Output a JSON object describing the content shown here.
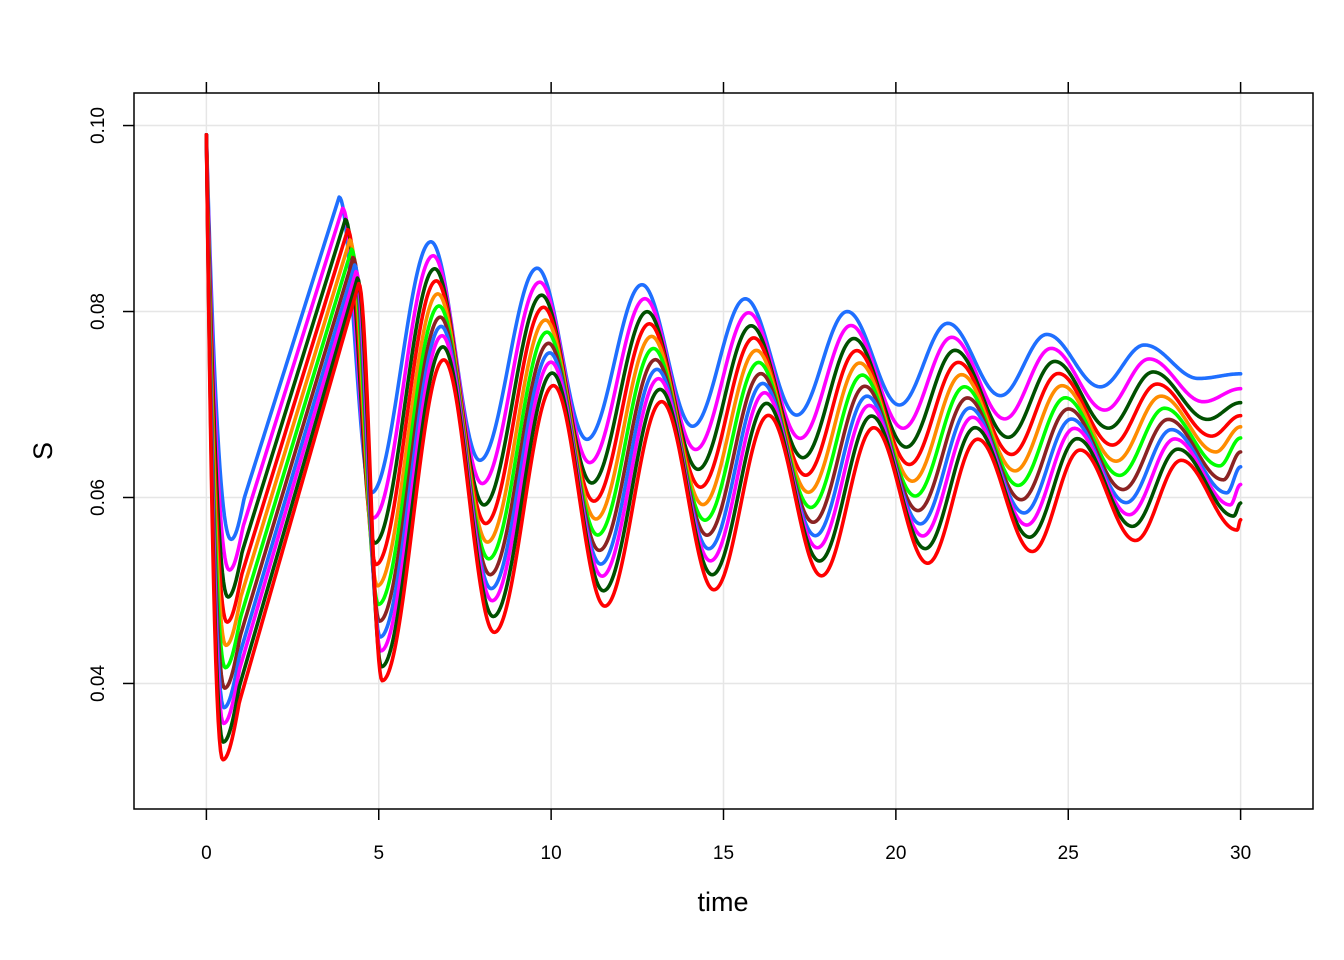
{
  "chart_data": {
    "type": "line",
    "title": "",
    "xlabel": "time",
    "ylabel": "S",
    "xlim": [
      -2.1,
      32.1
    ],
    "ylim": [
      0.0265,
      0.1035
    ],
    "x_ticks": [
      0,
      5,
      10,
      15,
      20,
      25,
      30
    ],
    "y_ticks": [
      0.04,
      0.06,
      0.08,
      0.1
    ],
    "x_tick_labels": [
      "0",
      "5",
      "10",
      "15",
      "20",
      "25",
      "30"
    ],
    "y_tick_labels": [
      "0.04",
      "0.06",
      "0.08",
      "0.10"
    ],
    "grid": true,
    "legend": "none",
    "series": [
      {
        "color": "#1f6fff",
        "s0": 0.099,
        "min1": 0.0555,
        "t_min1": 0.72,
        "peak1": 0.0923,
        "t_peak1": 3.85,
        "min2": 0.0605,
        "t_min2": 4.78,
        "period": 3.15,
        "period_end": 2.85,
        "peak2": 0.0875,
        "peak_end": 0.0764,
        "min3": 0.064,
        "min_end": 0.0728,
        "end": 0.0733
      },
      {
        "color": "#ff00ff",
        "s0": 0.099,
        "min1": 0.0522,
        "t_min1": 0.67,
        "peak1": 0.0911,
        "t_peak1": 3.95,
        "min2": 0.0578,
        "t_min2": 4.84,
        "period": 3.16,
        "period_end": 2.86,
        "peak2": 0.086,
        "peak_end": 0.0749,
        "min3": 0.0615,
        "min_end": 0.0703,
        "end": 0.0717
      },
      {
        "color": "#005000",
        "s0": 0.099,
        "min1": 0.0493,
        "t_min1": 0.63,
        "peak1": 0.0899,
        "t_peak1": 4.03,
        "min2": 0.0551,
        "t_min2": 4.88,
        "period": 3.17,
        "period_end": 2.87,
        "peak2": 0.0846,
        "peak_end": 0.0735,
        "min3": 0.0592,
        "min_end": 0.0684,
        "end": 0.0702
      },
      {
        "color": "#ff0000",
        "s0": 0.099,
        "min1": 0.0466,
        "t_min1": 0.6,
        "peak1": 0.0888,
        "t_peak1": 4.1,
        "min2": 0.0528,
        "t_min2": 4.92,
        "period": 3.18,
        "period_end": 2.88,
        "peak2": 0.0833,
        "peak_end": 0.0722,
        "min3": 0.0572,
        "min_end": 0.0666,
        "end": 0.0688
      },
      {
        "color": "#ff8c00",
        "s0": 0.099,
        "min1": 0.0441,
        "t_min1": 0.57,
        "peak1": 0.0877,
        "t_peak1": 4.16,
        "min2": 0.0505,
        "t_min2": 4.96,
        "period": 3.19,
        "period_end": 2.89,
        "peak2": 0.0819,
        "peak_end": 0.0709,
        "min3": 0.0552,
        "min_end": 0.0649,
        "end": 0.0676
      },
      {
        "color": "#00ff00",
        "s0": 0.099,
        "min1": 0.0417,
        "t_min1": 0.55,
        "peak1": 0.0867,
        "t_peak1": 4.21,
        "min2": 0.0485,
        "t_min2": 4.99,
        "period": 3.2,
        "period_end": 2.9,
        "peak2": 0.0806,
        "peak_end": 0.0696,
        "min3": 0.0534,
        "min_end": 0.0634,
        "end": 0.0664
      },
      {
        "color": "#8b2323",
        "s0": 0.099,
        "min1": 0.0395,
        "t_min1": 0.53,
        "peak1": 0.0858,
        "t_peak1": 4.26,
        "min2": 0.0467,
        "t_min2": 5.02,
        "period": 3.21,
        "period_end": 2.91,
        "peak2": 0.0794,
        "peak_end": 0.0684,
        "min3": 0.0517,
        "min_end": 0.0619,
        "end": 0.0649
      },
      {
        "color": "#1f6fff",
        "s0": 0.099,
        "min1": 0.0374,
        "t_min1": 0.51,
        "peak1": 0.085,
        "t_peak1": 4.3,
        "min2": 0.045,
        "t_min2": 5.04,
        "period": 3.22,
        "period_end": 2.92,
        "peak2": 0.0784,
        "peak_end": 0.0673,
        "min3": 0.0502,
        "min_end": 0.0605,
        "end": 0.0633
      },
      {
        "color": "#ff00ff",
        "s0": 0.099,
        "min1": 0.0357,
        "t_min1": 0.5,
        "peak1": 0.0843,
        "t_peak1": 4.34,
        "min2": 0.0435,
        "t_min2": 5.06,
        "period": 3.23,
        "period_end": 2.93,
        "peak2": 0.0774,
        "peak_end": 0.0663,
        "min3": 0.0489,
        "min_end": 0.0592,
        "end": 0.0614
      },
      {
        "color": "#005000",
        "s0": 0.099,
        "min1": 0.0337,
        "t_min1": 0.49,
        "peak1": 0.0836,
        "t_peak1": 4.38,
        "min2": 0.0418,
        "t_min2": 5.08,
        "period": 3.24,
        "period_end": 2.94,
        "peak2": 0.0762,
        "peak_end": 0.0652,
        "min3": 0.0472,
        "min_end": 0.058,
        "end": 0.0594
      },
      {
        "color": "#ff0000",
        "s0": 0.099,
        "min1": 0.0318,
        "t_min1": 0.48,
        "peak1": 0.083,
        "t_peak1": 4.42,
        "min2": 0.0403,
        "t_min2": 5.1,
        "period": 3.25,
        "period_end": 2.95,
        "peak2": 0.0748,
        "peak_end": 0.064,
        "min3": 0.0455,
        "min_end": 0.0565,
        "end": 0.0576
      }
    ]
  }
}
